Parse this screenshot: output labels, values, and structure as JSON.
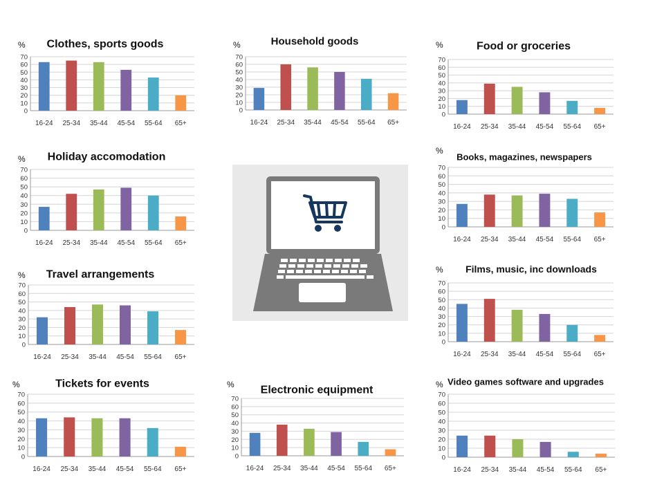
{
  "axis_unit": "%",
  "chart_data": [
    {
      "type": "bar",
      "title": "Clothes, sports goods",
      "categories": [
        "16-24",
        "25-34",
        "35-44",
        "45-54",
        "55-64",
        "65+"
      ],
      "values": [
        63,
        65,
        63,
        53,
        43,
        20
      ],
      "ylim": [
        0,
        70
      ],
      "yticks": [
        0,
        10,
        20,
        30,
        40,
        50,
        60,
        70
      ],
      "grid": true
    },
    {
      "type": "bar",
      "title": "Household goods",
      "categories": [
        "16-24",
        "25-34",
        "35-44",
        "45-54",
        "55-64",
        "65+"
      ],
      "values": [
        29,
        60,
        56,
        50,
        41,
        22
      ],
      "ylim": [
        0,
        70
      ],
      "yticks": [
        0,
        10,
        20,
        30,
        40,
        50,
        60,
        70
      ],
      "grid": true
    },
    {
      "type": "bar",
      "title": "Food or groceries",
      "categories": [
        "16-24",
        "25-34",
        "35-44",
        "45-54",
        "55-64",
        "65+"
      ],
      "values": [
        18,
        39,
        35,
        28,
        17,
        8
      ],
      "ylim": [
        0,
        70
      ],
      "yticks": [
        0,
        10,
        20,
        30,
        40,
        50,
        60,
        70
      ],
      "grid": true
    },
    {
      "type": "bar",
      "title": "Holiday accomodation",
      "categories": [
        "16-24",
        "25-34",
        "35-44",
        "45-54",
        "55-64",
        "65+"
      ],
      "values": [
        27,
        42,
        47,
        49,
        40,
        16
      ],
      "ylim": [
        0,
        70
      ],
      "yticks": [
        0,
        10,
        20,
        30,
        40,
        50,
        60,
        70
      ],
      "grid": true
    },
    {
      "type": "bar",
      "title": "Books, magazines, newspapers",
      "categories": [
        "16-24",
        "25-34",
        "35-44",
        "45-54",
        "55-64",
        "65+"
      ],
      "values": [
        27,
        38,
        37,
        39,
        33,
        17
      ],
      "ylim": [
        0,
        70
      ],
      "yticks": [
        0,
        10,
        20,
        30,
        40,
        50,
        60,
        70
      ],
      "grid": true
    },
    {
      "type": "bar",
      "title": "Travel arrangements",
      "categories": [
        "16-24",
        "25-34",
        "35-44",
        "45-54",
        "55-64",
        "65+"
      ],
      "values": [
        32,
        44,
        47,
        46,
        39,
        17
      ],
      "ylim": [
        0,
        70
      ],
      "yticks": [
        0,
        10,
        20,
        30,
        40,
        50,
        60,
        70
      ],
      "grid": true
    },
    {
      "type": "bar",
      "title": "Films, music, inc downloads",
      "categories": [
        "16-24",
        "25-34",
        "35-44",
        "45-54",
        "55-64",
        "65+"
      ],
      "values": [
        45,
        51,
        38,
        33,
        20,
        8
      ],
      "ylim": [
        0,
        70
      ],
      "yticks": [
        0,
        10,
        20,
        30,
        40,
        50,
        60,
        70
      ],
      "grid": true
    },
    {
      "type": "bar",
      "title": "Tickets for events",
      "categories": [
        "16-24",
        "25-34",
        "35-44",
        "45-54",
        "55-64",
        "65+"
      ],
      "values": [
        43,
        44,
        43,
        43,
        32,
        11
      ],
      "ylim": [
        0,
        70
      ],
      "yticks": [
        0,
        10,
        20,
        30,
        40,
        50,
        60,
        70
      ],
      "grid": true
    },
    {
      "type": "bar",
      "title": "Electronic equipment",
      "categories": [
        "16-24",
        "25-34",
        "35-44",
        "45-54",
        "55-64",
        "65+"
      ],
      "values": [
        28,
        38,
        33,
        29,
        17,
        8
      ],
      "ylim": [
        0,
        70
      ],
      "yticks": [
        0,
        10,
        20,
        30,
        40,
        50,
        60,
        70
      ],
      "grid": true
    },
    {
      "type": "bar",
      "title": "Video games software and upgrades",
      "categories": [
        "16-24",
        "25-34",
        "35-44",
        "45-54",
        "55-64",
        "65+"
      ],
      "values": [
        24,
        24,
        20,
        17,
        6,
        4
      ],
      "ylim": [
        0,
        70
      ],
      "yticks": [
        0,
        10,
        20,
        30,
        40,
        50,
        60,
        70
      ],
      "grid": true
    }
  ],
  "colors": {
    "bars": [
      "#4f81bd",
      "#c0504d",
      "#9bbb59",
      "#8064a2",
      "#4bacc6",
      "#f79646"
    ],
    "grid": "#d4d4d4",
    "axis": "#9a9a9a",
    "laptop_body": "#7a7a7a",
    "laptop_bg": "#e9e9e9",
    "cart": "#17375e"
  },
  "illustration": {
    "icons": [
      "laptop-icon",
      "shopping-cart-icon"
    ]
  }
}
